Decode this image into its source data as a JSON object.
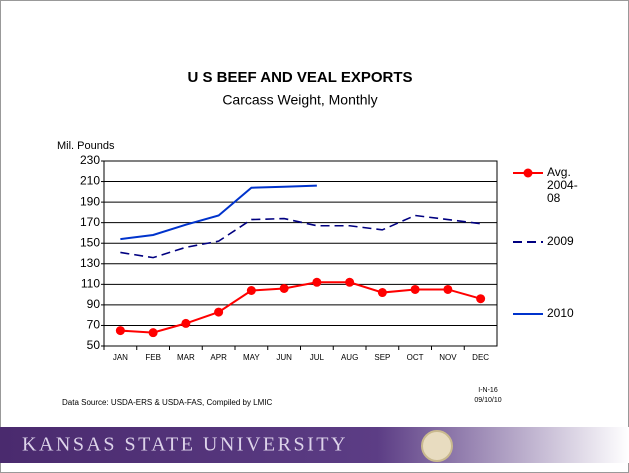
{
  "chart_data": {
    "type": "line",
    "title": "U S BEEF AND VEAL EXPORTS",
    "subtitle": "Carcass Weight, Monthly",
    "y_label": "Mil. Pounds",
    "categories": [
      "JAN",
      "FEB",
      "MAR",
      "APR",
      "MAY",
      "JUN",
      "JUL",
      "AUG",
      "SEP",
      "OCT",
      "NOV",
      "DEC"
    ],
    "series": [
      {
        "name": "Avg. 2004-08",
        "color": "#ff0000",
        "marker": "circle",
        "dash": false,
        "values": [
          65,
          63,
          72,
          83,
          104,
          106,
          112,
          112,
          102,
          105,
          105,
          96
        ]
      },
      {
        "name": "2009",
        "color": "#000080",
        "marker": "none",
        "dash": true,
        "values": [
          141,
          136,
          146,
          152,
          173,
          174,
          167,
          167,
          163,
          177,
          173,
          169
        ]
      },
      {
        "name": "2010",
        "color": "#0033cc",
        "marker": "none",
        "dash": false,
        "values": [
          154,
          158,
          168,
          177,
          204,
          205,
          206,
          null,
          null,
          null,
          null,
          null
        ]
      }
    ],
    "ylim": [
      50,
      230
    ],
    "yticks": [
      50,
      70,
      90,
      110,
      130,
      150,
      170,
      190,
      210,
      230
    ],
    "grid": true,
    "legend": "right"
  },
  "slide": {
    "source": "Data Source:  USDA-ERS & USDA-FAS, Compiled by LMIC",
    "code": "I-N-16",
    "date": "09/10/10",
    "footer": "KANSAS STATE UNIVERSITY"
  }
}
